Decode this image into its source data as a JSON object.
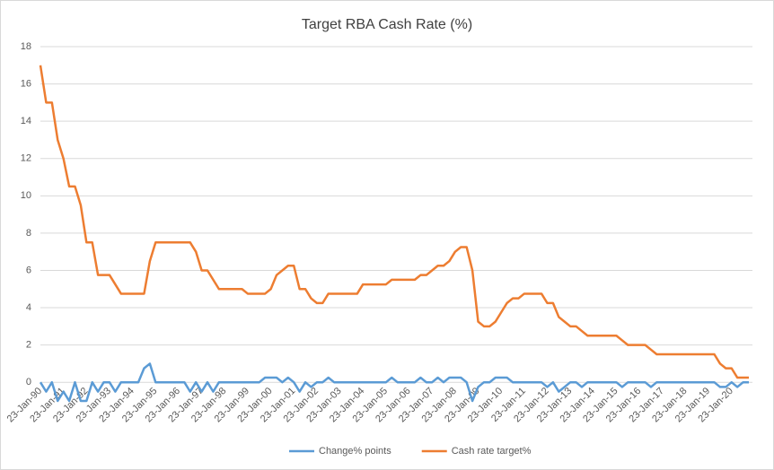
{
  "chart_data": {
    "type": "line",
    "title": "Target RBA Cash Rate (%)",
    "categories": [
      "23-Jan-90",
      null,
      null,
      null,
      "23-Jan-91",
      null,
      null,
      null,
      "23-Jan-92",
      null,
      null,
      null,
      "23-Jan-93",
      null,
      null,
      null,
      "23-Jan-94",
      null,
      null,
      null,
      "23-Jan-95",
      null,
      null,
      null,
      "23-Jan-96",
      null,
      null,
      null,
      "23-Jan-97",
      null,
      null,
      null,
      "23-Jan-98",
      null,
      null,
      null,
      "23-Jan-99",
      null,
      null,
      null,
      "23-Jan-00",
      null,
      null,
      null,
      "23-Jan-01",
      null,
      null,
      null,
      "23-Jan-02",
      null,
      null,
      null,
      "23-Jan-03",
      null,
      null,
      null,
      "23-Jan-04",
      null,
      null,
      null,
      "23-Jan-05",
      null,
      null,
      null,
      "23-Jan-06",
      null,
      null,
      null,
      "23-Jan-07",
      null,
      null,
      null,
      "23-Jan-08",
      null,
      null,
      null,
      "23-Jan-09",
      null,
      null,
      null,
      "23-Jan-10",
      null,
      null,
      null,
      "23-Jan-11",
      null,
      null,
      null,
      "23-Jan-12",
      null,
      null,
      null,
      "23-Jan-13",
      null,
      null,
      null,
      "23-Jan-14",
      null,
      null,
      null,
      "23-Jan-15",
      null,
      null,
      null,
      "23-Jan-16",
      null,
      null,
      null,
      "23-Jan-17",
      null,
      null,
      null,
      "23-Jan-18",
      null,
      null,
      null,
      "23-Jan-19",
      null,
      null,
      null,
      "23-Jan-20",
      null,
      null,
      null
    ],
    "series": [
      {
        "name": "Change% points",
        "color": "#5b9bd5",
        "values": [
          0,
          -0.5,
          0,
          -1,
          -0.5,
          -1,
          0,
          -1,
          -1,
          0,
          -0.5,
          0,
          0,
          -0.5,
          0,
          0,
          0,
          0,
          0.75,
          1,
          0,
          0,
          0,
          0,
          0,
          0,
          -0.5,
          0,
          -0.5,
          0,
          -0.5,
          0,
          0,
          0,
          0,
          0,
          0,
          0,
          0,
          0.25,
          0.25,
          0.25,
          0,
          0.25,
          0,
          -0.5,
          0,
          -0.25,
          0,
          0,
          0.25,
          0,
          0,
          0,
          0,
          0,
          0,
          0,
          0,
          0,
          0,
          0.25,
          0,
          0,
          0,
          0,
          0.25,
          0,
          0,
          0.25,
          0,
          0.25,
          0.25,
          0.25,
          0,
          -1,
          -0.25,
          0,
          0,
          0.25,
          0.25,
          0.25,
          0,
          0,
          0,
          0,
          0,
          0,
          -0.25,
          0,
          -0.5,
          -0.25,
          0,
          0,
          -0.25,
          0,
          0,
          0,
          0,
          0,
          0,
          -0.25,
          0,
          0,
          0,
          0,
          -0.25,
          0,
          0,
          0,
          0,
          0,
          0,
          0,
          0,
          0,
          0,
          0,
          -0.25,
          -0.25,
          0,
          -0.25,
          0,
          0
        ]
      },
      {
        "name": "Cash rate target%",
        "color": "#ed7d31",
        "values": [
          17,
          15,
          15,
          13,
          12,
          10.5,
          10.5,
          9.5,
          7.5,
          7.5,
          5.75,
          5.75,
          5.75,
          5.25,
          4.75,
          4.75,
          4.75,
          4.75,
          4.75,
          6.5,
          7.5,
          7.5,
          7.5,
          7.5,
          7.5,
          7.5,
          7.5,
          7,
          6,
          6,
          5.5,
          5,
          5,
          5,
          5,
          5,
          4.75,
          4.75,
          4.75,
          4.75,
          5,
          5.75,
          6,
          6.25,
          6.25,
          5,
          5,
          4.5,
          4.25,
          4.25,
          4.75,
          4.75,
          4.75,
          4.75,
          4.75,
          4.75,
          5.25,
          5.25,
          5.25,
          5.25,
          5.25,
          5.5,
          5.5,
          5.5,
          5.5,
          5.5,
          5.75,
          5.75,
          6,
          6.25,
          6.25,
          6.5,
          7,
          7.25,
          7.25,
          6,
          3.25,
          3,
          3,
          3.25,
          3.75,
          4.25,
          4.5,
          4.5,
          4.75,
          4.75,
          4.75,
          4.75,
          4.25,
          4.25,
          3.5,
          3.25,
          3,
          3,
          2.75,
          2.5,
          2.5,
          2.5,
          2.5,
          2.5,
          2.5,
          2.25,
          2,
          2,
          2,
          2,
          1.75,
          1.5,
          1.5,
          1.5,
          1.5,
          1.5,
          1.5,
          1.5,
          1.5,
          1.5,
          1.5,
          1.5,
          1,
          0.75,
          0.75,
          0.25,
          0.25,
          0.25
        ]
      }
    ],
    "ylim": [
      -1,
      18
    ],
    "yticks": [
      0,
      2,
      4,
      6,
      8,
      10,
      12,
      14,
      16,
      18
    ],
    "grid": true,
    "legend": "bottom"
  }
}
